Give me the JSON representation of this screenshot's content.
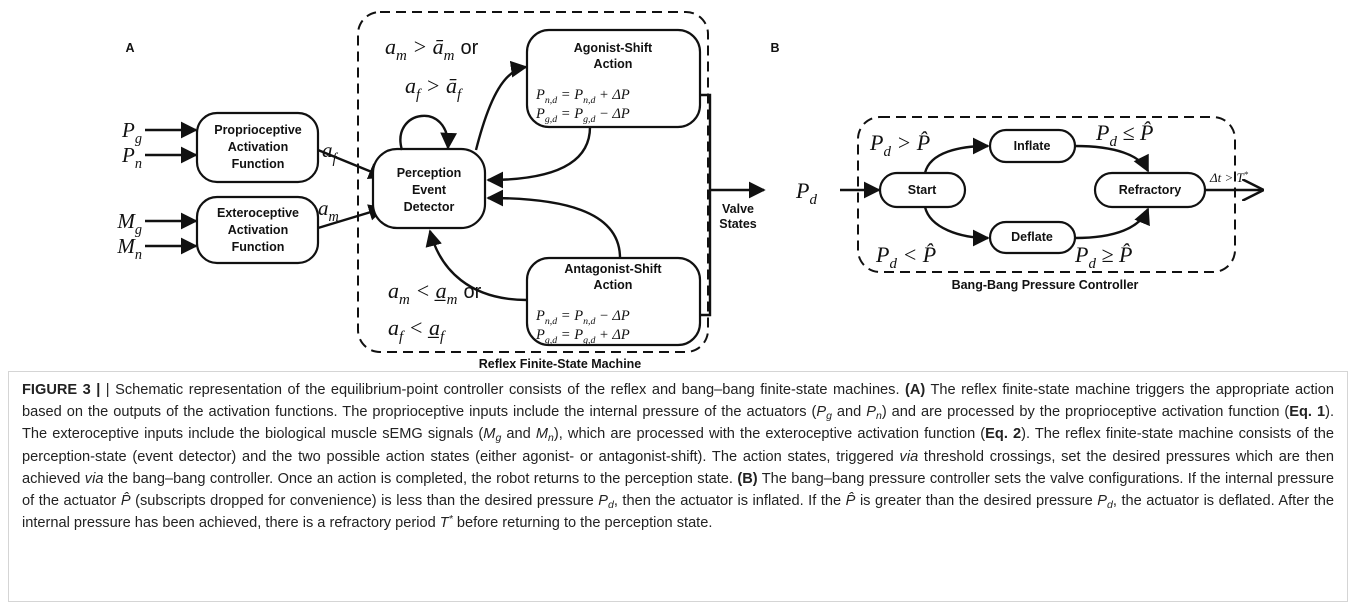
{
  "figure": {
    "panel_a": {
      "label": "A",
      "inputs": [
        [
          {
            "t": "P",
            "sub": "g"
          }
        ],
        [
          {
            "t": "P",
            "sub": "n"
          }
        ],
        [
          {
            "t": "M",
            "sub": "g"
          }
        ],
        [
          {
            "t": "M",
            "sub": "n"
          }
        ]
      ],
      "proprioceptive_box": [
        "Proprioceptive",
        "Activation",
        "Function"
      ],
      "exteroceptive_box": [
        "Exteroceptive",
        "Activation",
        "Function"
      ],
      "proprioceptive_output": [
        {
          "t": "a",
          "sub": "f"
        }
      ],
      "exteroceptive_output": [
        {
          "t": "a",
          "sub": "m"
        }
      ],
      "perception_box": [
        "Perception",
        "Event",
        "Detector"
      ],
      "agonist_box": {
        "title": [
          "Agonist-Shift",
          "Action"
        ],
        "equations": [
          [
            {
              "t": "P",
              "sub": "n,d"
            },
            {
              "t": " = P",
              "sub": "n,d"
            },
            {
              "t": " + ΔP"
            }
          ],
          [
            {
              "t": "P",
              "sub": "g,d"
            },
            {
              "t": " = P",
              "sub": "g,d"
            },
            {
              "t": " − ΔP"
            }
          ]
        ]
      },
      "antagonist_box": {
        "title": [
          "Antagonist-Shift",
          "Action"
        ],
        "equations": [
          [
            {
              "t": "P",
              "sub": "n,d"
            },
            {
              "t": " = P",
              "sub": "n,d"
            },
            {
              "t": " − ΔP"
            }
          ],
          [
            {
              "t": "P",
              "sub": "g,d"
            },
            {
              "t": " = P",
              "sub": "g,d"
            },
            {
              "t": " + ΔP"
            }
          ]
        ]
      },
      "upper_condition": {
        "first": [
          {
            "t": "a",
            "sub": "m"
          },
          {
            "t": " > ā",
            "sub": "m"
          }
        ],
        "connector": "or",
        "second": [
          {
            "t": "a",
            "sub": "f"
          },
          {
            "t": " > ā",
            "sub": "f"
          }
        ]
      },
      "lower_condition": {
        "first": [
          {
            "t": "a",
            "sub": "m"
          },
          {
            "t": " < a̲",
            "sub": "m"
          }
        ],
        "connector": "or",
        "second": [
          {
            "t": "a",
            "sub": "f"
          },
          {
            "t": " < a̲",
            "sub": "f"
          }
        ]
      },
      "output": [
        "Valve",
        "States"
      ],
      "machine_label": "Reflex Finite-State Machine"
    },
    "panel_b": {
      "label": "B",
      "input": [
        {
          "t": "P",
          "sub": "d"
        }
      ],
      "states": {
        "start": "Start",
        "inflate": "Inflate",
        "deflate": "Deflate",
        "refractory": "Refractory"
      },
      "conditions": {
        "start_to_inflate": [
          {
            "t": "P",
            "sub": "d"
          },
          {
            "t": " > P̂"
          }
        ],
        "inflate_to_refractory": [
          {
            "t": "P",
            "sub": "d"
          },
          {
            "t": " ≤ P̂"
          }
        ],
        "start_to_deflate": [
          {
            "t": "P",
            "sub": "d"
          },
          {
            "t": " < P̂"
          }
        ],
        "deflate_to_refractory": [
          {
            "t": "P",
            "sub": "d"
          },
          {
            "t": " ≥ P̂"
          }
        ]
      },
      "exit_condition": [
        {
          "t": "Δt > T",
          "sup": "*"
        }
      ],
      "controller_label": "Bang-Bang Pressure Controller"
    }
  },
  "caption": [
    {
      "text": "FIGURE 3 |",
      "style": "bold"
    },
    {
      "text": " | Schematic representation of the equilibrium-point controller consists of the reflex and bang–bang finite-state machines. "
    },
    {
      "text": "(A)",
      "style": "bold"
    },
    {
      "text": " The reflex finite-state machine triggers the appropriate action based on the outputs of the activation functions. The proprioceptive inputs include the internal pressure of the actuators ("
    },
    {
      "text": "P",
      "style": "italic"
    },
    {
      "text": "g",
      "style": "sub"
    },
    {
      "text": " and "
    },
    {
      "text": "P",
      "style": "italic"
    },
    {
      "text": "n",
      "style": "sub"
    },
    {
      "text": ") and are processed by the proprioceptive activation function ("
    },
    {
      "text": "Eq. 1",
      "style": "bold"
    },
    {
      "text": "). The exteroceptive inputs include the biological muscle sEMG signals ("
    },
    {
      "text": "M",
      "style": "italic"
    },
    {
      "text": "g",
      "style": "sub"
    },
    {
      "text": " and "
    },
    {
      "text": "M",
      "style": "italic"
    },
    {
      "text": "n",
      "style": "sub"
    },
    {
      "text": "), which are processed with the exteroceptive activation function ("
    },
    {
      "text": "Eq. 2",
      "style": "bold"
    },
    {
      "text": "). The reflex finite-state machine consists of the perception-state (event detector) and the two possible action states (either agonist- or antagonist-shift). The action states, triggered "
    },
    {
      "text": "via",
      "style": "italic"
    },
    {
      "text": " threshold crossings, set the desired pressures which are then achieved "
    },
    {
      "text": "via",
      "style": "italic"
    },
    {
      "text": " the bang–bang controller. Once an action is completed, the robot returns to the perception state. "
    },
    {
      "text": "(B)",
      "style": "bold"
    },
    {
      "text": " The bang–bang pressure controller sets the valve configurations. If the internal pressure of the actuator "
    },
    {
      "text": "P̂",
      "style": "italic"
    },
    {
      "text": " (subscripts dropped for convenience) is less than the desired pressure "
    },
    {
      "text": "P",
      "style": "italic"
    },
    {
      "text": "d",
      "style": "sub"
    },
    {
      "text": ", then the actuator is inflated. If the "
    },
    {
      "text": "P̂",
      "style": "italic"
    },
    {
      "text": " is greater than the desired pressure "
    },
    {
      "text": "P",
      "style": "italic"
    },
    {
      "text": "d",
      "style": "sub"
    },
    {
      "text": ", the actuator is deflated. After the internal pressure has been achieved, there is a refractory period "
    },
    {
      "text": "T",
      "style": "italic"
    },
    {
      "text": "*",
      "style": "sup"
    },
    {
      "text": " before returning to the perception state."
    }
  ]
}
